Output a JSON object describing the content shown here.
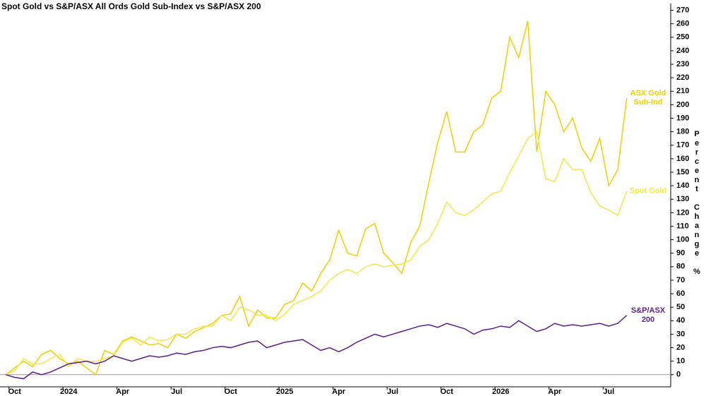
{
  "chart_data": {
    "type": "line",
    "title": "Spot Gold vs S&P/ASX All Ords Gold Sub-Index vs S&P/ASX 200",
    "y_label": "Percent Change %",
    "categories": [
      null,
      "Oct",
      null,
      null,
      null,
      null,
      null,
      "2024",
      null,
      null,
      null,
      null,
      null,
      "Apr",
      null,
      null,
      null,
      null,
      null,
      "Jul",
      null,
      null,
      null,
      null,
      null,
      "Oct",
      null,
      null,
      null,
      null,
      null,
      "2025",
      null,
      null,
      null,
      null,
      null,
      "Apr",
      null,
      null,
      null,
      null,
      null,
      "Jul",
      null,
      null,
      null,
      null,
      null,
      "Oct",
      null,
      null,
      null,
      null,
      null,
      "2026",
      null,
      null,
      null,
      null,
      null,
      "Apr",
      null,
      null,
      null,
      null,
      null,
      "Jul",
      null,
      null
    ],
    "series": [
      {
        "name": "ASX Gold Sub-Ind",
        "color": "#f0d000",
        "values": [
          0,
          5,
          10,
          6,
          15,
          18,
          12,
          8,
          10,
          5,
          0,
          18,
          15,
          25,
          28,
          25,
          22,
          23,
          20,
          30,
          27,
          32,
          35,
          38,
          44,
          45,
          58,
          36,
          48,
          42,
          42,
          52,
          55,
          68,
          62,
          75,
          85,
          107,
          90,
          88,
          108,
          112,
          90,
          83,
          75,
          98,
          110,
          142,
          172,
          195,
          165,
          165,
          180,
          185,
          205,
          210,
          250,
          235,
          262,
          165,
          210,
          200,
          180,
          190,
          168,
          158,
          175,
          140,
          152,
          205
        ]
      },
      {
        "name": "Spot Gold",
        "color": "#f3e84a",
        "values": [
          0,
          3,
          12,
          8,
          8,
          12,
          15,
          6,
          12,
          10,
          10,
          12,
          14,
          24,
          27,
          22,
          28,
          25,
          26,
          30,
          30,
          34,
          36,
          36,
          44,
          40,
          50,
          48,
          44,
          44,
          40,
          45,
          52,
          55,
          58,
          62,
          70,
          75,
          78,
          75,
          80,
          82,
          80,
          81,
          82,
          85,
          95,
          100,
          112,
          128,
          120,
          118,
          122,
          128,
          134,
          136,
          150,
          162,
          175,
          180,
          145,
          143,
          160,
          152,
          152,
          135,
          125,
          122,
          118,
          136
        ]
      },
      {
        "name": "S&P/ASX 200",
        "color": "#5b1e8a",
        "values": [
          0,
          -2,
          -3,
          2,
          0,
          2,
          5,
          8,
          9,
          10,
          8,
          10,
          14,
          12,
          10,
          12,
          14,
          13,
          14,
          16,
          15,
          17,
          18,
          20,
          21,
          20,
          22,
          24,
          25,
          20,
          22,
          24,
          25,
          26,
          22,
          18,
          20,
          17,
          20,
          24,
          27,
          30,
          28,
          30,
          32,
          34,
          36,
          37,
          35,
          38,
          36,
          34,
          30,
          33,
          34,
          36,
          35,
          40,
          36,
          32,
          34,
          38,
          36,
          37,
          36,
          37,
          38,
          36,
          38,
          44
        ]
      }
    ],
    "ylim": [
      -9,
      275
    ],
    "yticks": [
      0,
      10,
      20,
      30,
      40,
      50,
      60,
      70,
      80,
      90,
      100,
      110,
      120,
      130,
      140,
      150,
      160,
      170,
      180,
      190,
      200,
      210,
      220,
      230,
      240,
      250,
      260,
      270
    ],
    "zero_line": true
  }
}
